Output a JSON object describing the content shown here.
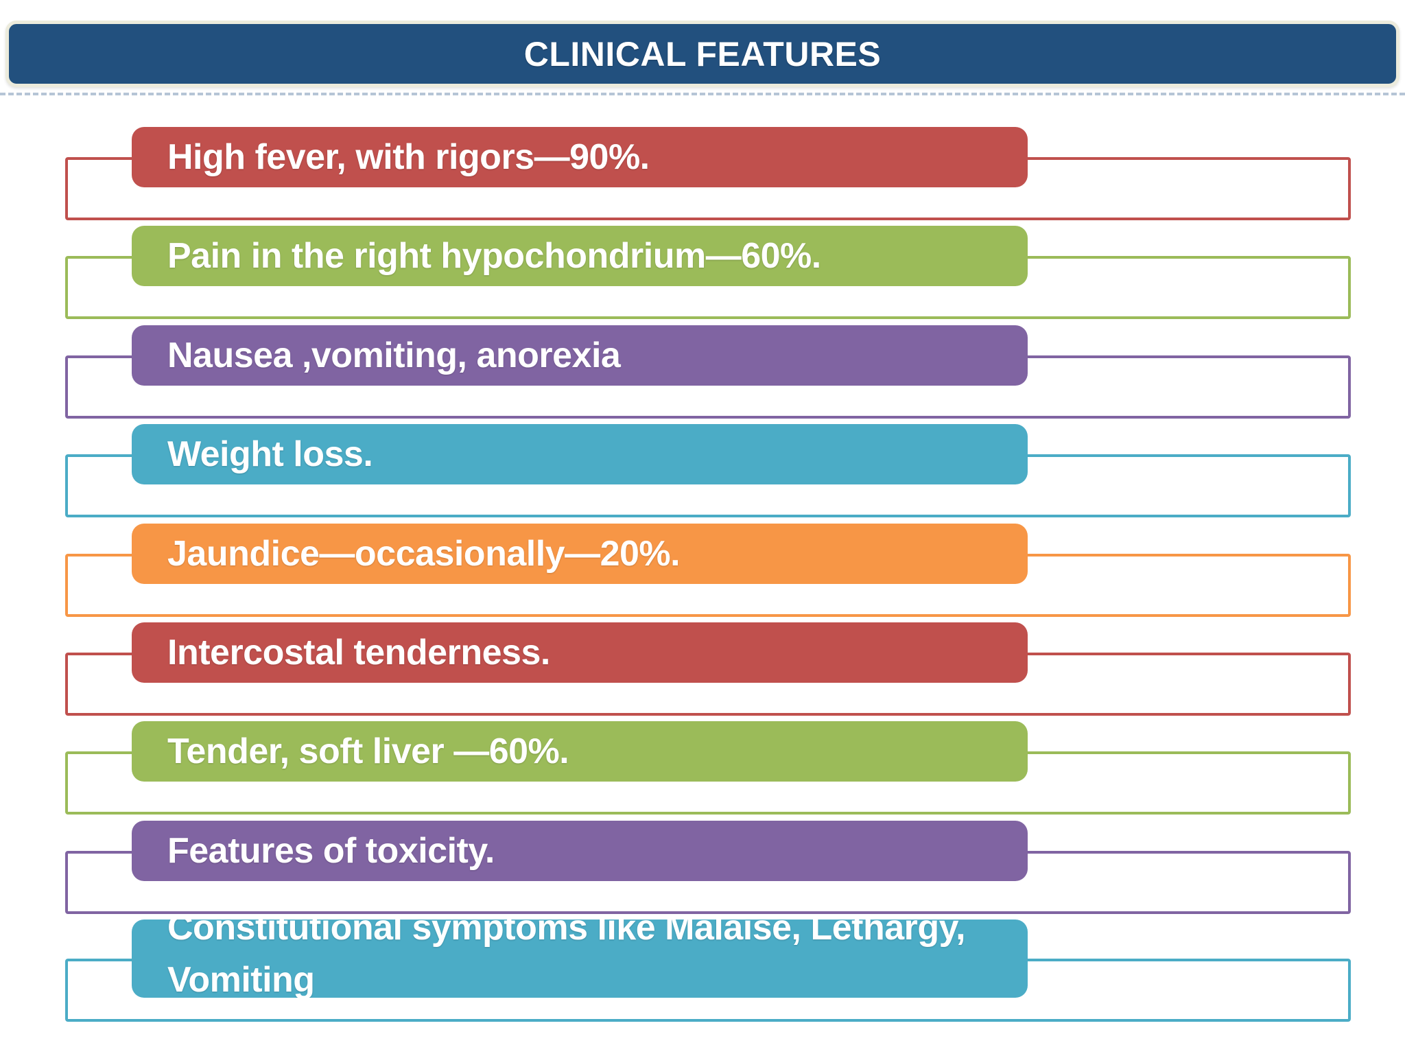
{
  "title": {
    "label": "CLINICAL FEATURES"
  },
  "theme": {
    "title_bg": "#22507E",
    "title_border": "#ECEBDC",
    "title_text_color": "#FFFFFF",
    "item_text_color": "#FFFFFF",
    "accent_red": "#C0504D",
    "accent_green": "#9BBB59",
    "accent_purple": "#8064A2",
    "accent_teal": "#4BACC6",
    "accent_orange": "#F79646"
  },
  "items": [
    {
      "label": "High fever, with rigors—90%.",
      "color": "#C0504D"
    },
    {
      "label": "Pain in the right hypochondrium—60%.",
      "color": "#9BBB59"
    },
    {
      "label": "Nausea ,vomiting, anorexia",
      "color": "#8064A2"
    },
    {
      "label": "Weight loss.",
      "color": "#4BACC6"
    },
    {
      "label": "Jaundice—occasionally—20%.",
      "color": "#F79646"
    },
    {
      "label": "Intercostal tenderness.",
      "color": "#C0504D"
    },
    {
      "label": "Tender, soft liver —60%.",
      "color": "#9BBB59"
    },
    {
      "label": "Features of toxicity.",
      "color": "#8064A2"
    },
    {
      "label": "Constitutional symptoms like Malaise, Lethargy, Vomiting",
      "color": "#4BACC6",
      "lines": [
        "Constitutional symptoms like Malaise, Lethargy,",
        "Vomiting"
      ],
      "text_clipped_by_shape": true
    }
  ]
}
